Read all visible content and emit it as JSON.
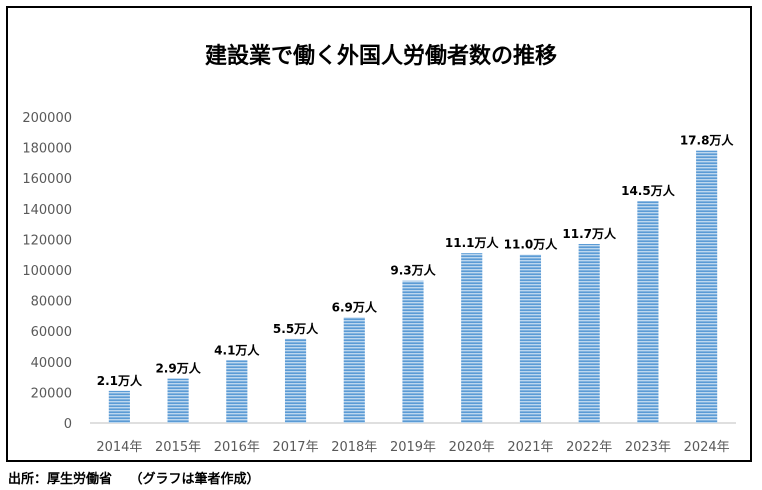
{
  "chart_data": {
    "type": "bar",
    "title": "建設業で働く外国人労働者数の推移",
    "categories": [
      "2014年",
      "2015年",
      "2016年",
      "2017年",
      "2018年",
      "2019年",
      "2020年",
      "2021年",
      "2022年",
      "2023年",
      "2024年"
    ],
    "values": [
      21000,
      29000,
      41000,
      55000,
      69000,
      93000,
      111000,
      110000,
      117000,
      145000,
      178000
    ],
    "data_labels": [
      "2.1万人",
      "2.9万人",
      "4.1万人",
      "5.5万人",
      "6.9万人",
      "9.3万人",
      "11.1万人",
      "11.0万人",
      "11.7万人",
      "14.5万人",
      "17.8万人"
    ],
    "y_ticks": [
      "0",
      "20000",
      "40000",
      "60000",
      "80000",
      "100000",
      "120000",
      "140000",
      "160000",
      "180000",
      "200000"
    ],
    "ylim": [
      0,
      200000
    ],
    "xlabel": "",
    "ylabel": "",
    "grid": false,
    "legend": "none",
    "bar_color": "#5b9bd5",
    "bar_stripe_color": "#bdd7ee"
  },
  "source_note": "出所：厚生労働省　 （グラフは筆者作成）"
}
